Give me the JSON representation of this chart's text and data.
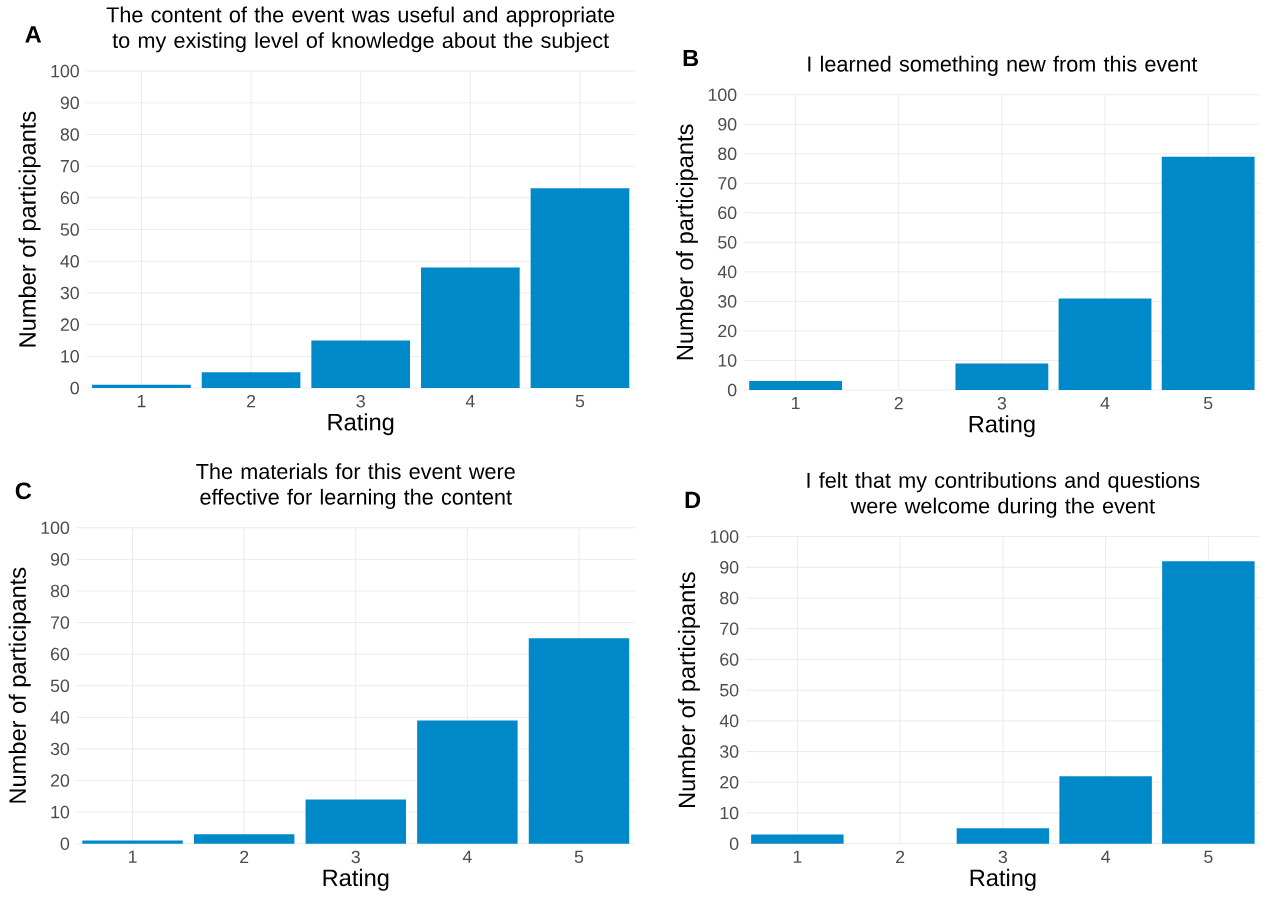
{
  "chart_data": [
    {
      "type": "bar",
      "annotations": [
        "A"
      ],
      "title": "The content of the event was useful and appropriate to my existing level of knowledge about the subject",
      "xlabel": "Rating",
      "ylabel": "Number of participants",
      "categories": [
        "1",
        "2",
        "3",
        "4",
        "5"
      ],
      "values": [
        1,
        5,
        15,
        38,
        63
      ],
      "color": "#0089c8",
      "ylim": [
        0,
        100
      ],
      "yticks": [
        0,
        10,
        20,
        30,
        40,
        50,
        60,
        70,
        80,
        90,
        100
      ],
      "grid": true
    },
    {
      "type": "bar",
      "annotations": [
        "B"
      ],
      "title": "I learned something new from this event",
      "xlabel": "Rating",
      "ylabel": "Number of participants",
      "categories": [
        "1",
        "2",
        "3",
        "4",
        "5"
      ],
      "values": [
        3,
        0,
        9,
        31,
        79
      ],
      "color": "#0089c8",
      "ylim": [
        0,
        100
      ],
      "yticks": [
        0,
        10,
        20,
        30,
        40,
        50,
        60,
        70,
        80,
        90,
        100
      ],
      "grid": true
    },
    {
      "type": "bar",
      "annotations": [
        "C"
      ],
      "title": "The materials for this event were effective for learning the content",
      "xlabel": "Rating",
      "ylabel": "Number of participants",
      "categories": [
        "1",
        "2",
        "3",
        "4",
        "5"
      ],
      "values": [
        1,
        3,
        14,
        39,
        65
      ],
      "color": "#0089c8",
      "ylim": [
        0,
        100
      ],
      "yticks": [
        0,
        10,
        20,
        30,
        40,
        50,
        60,
        70,
        80,
        90,
        100
      ],
      "grid": true
    },
    {
      "type": "bar",
      "annotations": [
        "D"
      ],
      "title": "I felt that my contributions and questions were welcome during the event",
      "xlabel": "Rating",
      "ylabel": "Number of participants",
      "categories": [
        "1",
        "2",
        "3",
        "4",
        "5"
      ],
      "values": [
        3,
        0,
        5,
        22,
        92
      ],
      "color": "#0089c8",
      "ylim": [
        0,
        100
      ],
      "yticks": [
        0,
        10,
        20,
        30,
        40,
        50,
        60,
        70,
        80,
        90,
        100
      ],
      "grid": true
    }
  ]
}
